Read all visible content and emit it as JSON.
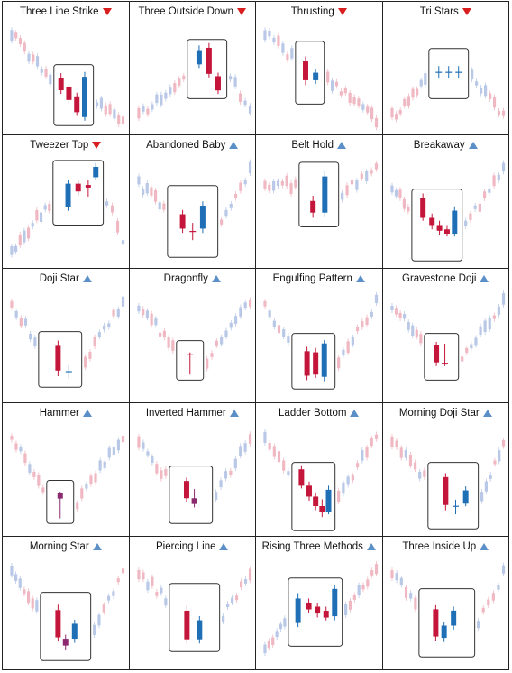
{
  "colors": {
    "bear": "#c4163a",
    "bull": "#1f6fb6",
    "bear_light": "#f0b8c2",
    "bull_light": "#b8c8e6",
    "box": "#333333",
    "arrow_down": "#d81e1e",
    "arrow_up": "#5b8fc7"
  },
  "patterns": [
    {
      "name": "Three Line Strike",
      "direction": "down",
      "chart_type": "candlestick",
      "context": [
        72,
        76,
        74,
        79,
        77,
        82,
        80,
        86,
        88,
        92,
        95,
        98,
        104,
        101,
        110,
        115,
        120,
        125,
        122
      ],
      "box_candles": 4,
      "box_after": 4
    },
    {
      "name": "Three Outside Down",
      "direction": "down",
      "chart_type": "candlestick",
      "context": [
        120,
        116,
        112,
        108,
        104,
        100,
        96
      ],
      "box_candles": 3,
      "box_after": 5
    },
    {
      "name": "Thrusting",
      "direction": "down",
      "chart_type": "candlestick",
      "context": [
        40,
        48,
        45,
        55,
        52,
        60,
        64
      ],
      "box_candles": 2,
      "box_after": 8
    },
    {
      "name": "Tri Stars",
      "direction": "down",
      "chart_type": "candlestick",
      "context": [
        130,
        115,
        108,
        100,
        98,
        92,
        90
      ],
      "box_candles": 3,
      "box_after": 6
    },
    {
      "name": "Tweezer Top",
      "direction": "down",
      "chart_type": "candlestick",
      "context": [
        150,
        140,
        135,
        128,
        118,
        110,
        100
      ],
      "box_candles": 4,
      "box_after": 5
    },
    {
      "name": "Abandoned Baby",
      "direction": "up",
      "chart_type": "candlestick",
      "context": [
        60,
        55,
        66,
        70,
        80,
        85
      ],
      "box_candles": 3,
      "box_after": 4
    },
    {
      "name": "Belt Hold",
      "direction": "up",
      "chart_type": "candlestick",
      "context": [
        40,
        45,
        50,
        55,
        60,
        64
      ],
      "box_candles": 2,
      "box_after": 4
    },
    {
      "name": "Breakaway",
      "direction": "up",
      "chart_type": "candlestick",
      "context": [
        50,
        58,
        64,
        70,
        76
      ],
      "box_candles": 5,
      "box_after": 4
    },
    {
      "name": "Doji Star",
      "direction": "up",
      "chart_type": "candlestick",
      "context": [
        40,
        46,
        52,
        56,
        60,
        66,
        70
      ],
      "box_candles": 2,
      "box_after": 6
    },
    {
      "name": "Dragonfly",
      "direction": "up",
      "chart_type": "candlestick",
      "context": [
        30,
        38,
        42,
        50,
        54,
        58
      ],
      "box_candles": 1,
      "box_after": 7
    },
    {
      "name": "Engulfing Pattern",
      "direction": "up",
      "chart_type": "candlestick",
      "context": [
        40,
        46,
        50,
        56,
        62,
        66
      ],
      "box_candles": 3,
      "box_after": 6
    },
    {
      "name": "Gravestone Doji",
      "direction": "up",
      "chart_type": "candlestick",
      "context": [
        40,
        46,
        52,
        58,
        62,
        66
      ],
      "box_candles": 2,
      "box_after": 7
    },
    {
      "name": "Hammer",
      "direction": "up",
      "chart_type": "candlestick",
      "context": [
        30,
        38,
        44,
        50,
        55,
        60
      ],
      "box_candles": 1,
      "box_after": 8
    },
    {
      "name": "Inverted Hammer",
      "direction": "up",
      "chart_type": "candlestick",
      "context": [
        30,
        36,
        42,
        48,
        52,
        58
      ],
      "box_candles": 2,
      "box_after": 6
    },
    {
      "name": "Ladder Bottom",
      "direction": "up",
      "chart_type": "candlestick",
      "context": [
        30,
        40,
        46,
        52
      ],
      "box_candles": 5,
      "box_after": 4
    },
    {
      "name": "Morning Doji Star",
      "direction": "up",
      "chart_type": "candlestick",
      "context": [
        40,
        48,
        54,
        60,
        64
      ],
      "box_candles": 3,
      "box_after": 5
    },
    {
      "name": "Morning Star",
      "direction": "up",
      "chart_type": "candlestick",
      "context": [
        34,
        42,
        48,
        54,
        60,
        64
      ],
      "box_candles": 3,
      "box_after": 6
    },
    {
      "name": "Piercing Line",
      "direction": "up",
      "chart_type": "candlestick",
      "context": [
        36,
        42,
        48,
        54,
        60
      ],
      "box_candles": 2,
      "box_after": 6
    },
    {
      "name": "Rising Three Methods",
      "direction": "up",
      "chart_type": "candlestick",
      "context": [
        20,
        28,
        36,
        44
      ],
      "box_candles": 5,
      "box_after": 4
    },
    {
      "name": "Three Inside Up",
      "direction": "up",
      "chart_type": "candlestick",
      "context": [
        38,
        44,
        50,
        56,
        60
      ],
      "box_candles": 3,
      "box_after": 6
    }
  ]
}
